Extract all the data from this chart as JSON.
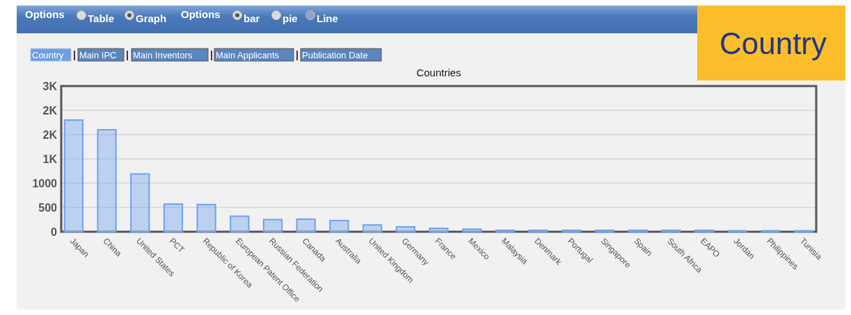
{
  "chart_data": {
    "type": "bar",
    "title": "Countries",
    "categories": [
      "Japan",
      "China",
      "United States",
      "PCT",
      "Republic of Korea",
      "European Patent Office",
      "Russian Federation",
      "Canada",
      "Australia",
      "United Kingdom",
      "Germany",
      "France",
      "Mexico",
      "Malaysia",
      "Denmark",
      "Portugal",
      "Singapore",
      "Spain",
      "South Africa",
      "EAPO",
      "Jordan",
      "Philippines",
      "Tunisia"
    ],
    "values": [
      2300,
      2100,
      1190,
      570,
      560,
      320,
      250,
      260,
      230,
      140,
      100,
      70,
      55,
      30,
      30,
      30,
      30,
      30,
      30,
      30,
      20,
      20,
      20
    ],
    "color": "#6fa0f0",
    "ylim": [
      0,
      3000
    ],
    "yticks": [
      0,
      500,
      1000,
      {
        "value": 1500,
        "label": "1K"
      },
      {
        "value": 2000,
        "label": "2K"
      },
      {
        "value": 2500,
        "label": "2K"
      },
      {
        "value": 3000,
        "label": "3K"
      }
    ],
    "grid": "y",
    "annotations": [
      "Options",
      "Table",
      "Graph",
      "Options",
      "bar",
      "pie",
      "Line",
      "Country",
      "Main IPC",
      "Main Inventors",
      "Main Applicants",
      "Publication Date",
      "Country"
    ]
  }
}
